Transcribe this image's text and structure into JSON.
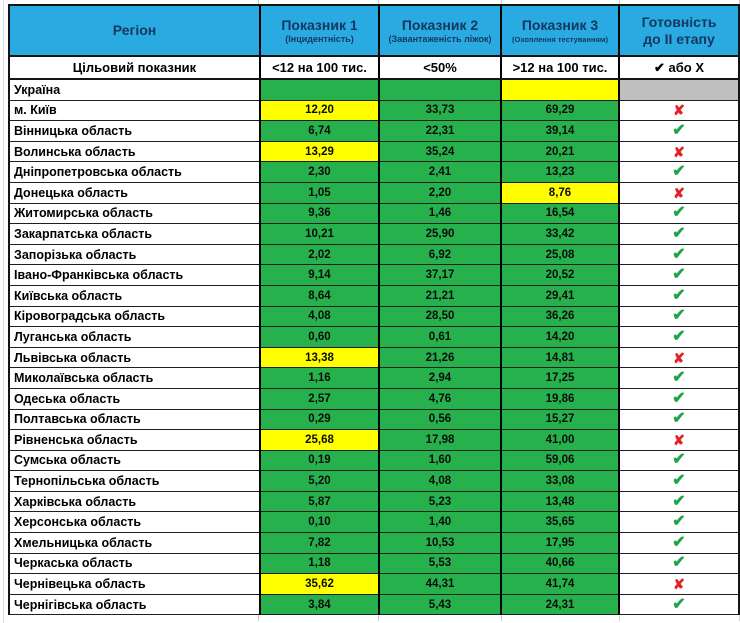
{
  "palette": {
    "header_blue": "#29ABE2",
    "header_text": "#15365F",
    "cell_green": "#26B14C",
    "cell_yellow": "#FFFF00",
    "cell_gray": "#BFBFBF",
    "check_green": "#1CA54A",
    "cross_red": "#E31E25"
  },
  "header": {
    "region": "Регіон",
    "col1_title": "Показник 1",
    "col1_subtitle": "(Інцидентність)",
    "col2_title": "Показник 2",
    "col2_subtitle": "(Завантаженість ліжок)",
    "col3_title": "Показник 3",
    "col3_subtitle": "(Охоплення тестуванням)",
    "ready_line1": "Готовність",
    "ready_line2": "до II етапу"
  },
  "target_row": {
    "label": "Цільовий показник",
    "v1": "<12 на 100 тис.",
    "v2": "<50%",
    "v3": ">12 на 100 тис.",
    "ready": "✔ або Х"
  },
  "marks": {
    "check": "✔",
    "cross": "✘"
  },
  "rows": [
    {
      "region": "Україна",
      "values": [
        "",
        "",
        ""
      ],
      "cell_colors": [
        "green",
        "green",
        "yellow"
      ],
      "ready": "none"
    },
    {
      "region": "м. Київ",
      "values": [
        "12,20",
        "33,73",
        "69,29"
      ],
      "cell_colors": [
        "yellow",
        "green",
        "green"
      ],
      "ready": "cross"
    },
    {
      "region": "Вінницька область",
      "values": [
        "6,74",
        "22,31",
        "39,14"
      ],
      "cell_colors": [
        "green",
        "green",
        "green"
      ],
      "ready": "check"
    },
    {
      "region": "Волинська область",
      "values": [
        "13,29",
        "35,24",
        "20,21"
      ],
      "cell_colors": [
        "yellow",
        "green",
        "green"
      ],
      "ready": "cross"
    },
    {
      "region": "Дніпропетровська область",
      "values": [
        "2,30",
        "2,41",
        "13,23"
      ],
      "cell_colors": [
        "green",
        "green",
        "green"
      ],
      "ready": "check"
    },
    {
      "region": "Донецька область",
      "values": [
        "1,05",
        "2,20",
        "8,76"
      ],
      "cell_colors": [
        "green",
        "green",
        "yellow"
      ],
      "ready": "cross"
    },
    {
      "region": "Житомирська область",
      "values": [
        "9,36",
        "1,46",
        "16,54"
      ],
      "cell_colors": [
        "green",
        "green",
        "green"
      ],
      "ready": "check"
    },
    {
      "region": "Закарпатська область",
      "values": [
        "10,21",
        "25,90",
        "33,42"
      ],
      "cell_colors": [
        "green",
        "green",
        "green"
      ],
      "ready": "check"
    },
    {
      "region": "Запорізька область",
      "values": [
        "2,02",
        "6,92",
        "25,08"
      ],
      "cell_colors": [
        "green",
        "green",
        "green"
      ],
      "ready": "check"
    },
    {
      "region": "Івано-Франківська область",
      "values": [
        "9,14",
        "37,17",
        "20,52"
      ],
      "cell_colors": [
        "green",
        "green",
        "green"
      ],
      "ready": "check"
    },
    {
      "region": "Київська область",
      "values": [
        "8,64",
        "21,21",
        "29,41"
      ],
      "cell_colors": [
        "green",
        "green",
        "green"
      ],
      "ready": "check"
    },
    {
      "region": "Кіровоградська область",
      "values": [
        "4,08",
        "28,50",
        "36,26"
      ],
      "cell_colors": [
        "green",
        "green",
        "green"
      ],
      "ready": "check"
    },
    {
      "region": "Луганська область",
      "values": [
        "0,60",
        "0,61",
        "14,20"
      ],
      "cell_colors": [
        "green",
        "green",
        "green"
      ],
      "ready": "check"
    },
    {
      "region": "Львівська область",
      "values": [
        "13,38",
        "21,26",
        "14,81"
      ],
      "cell_colors": [
        "yellow",
        "green",
        "green"
      ],
      "ready": "cross"
    },
    {
      "region": "Миколаївська область",
      "values": [
        "1,16",
        "2,94",
        "17,25"
      ],
      "cell_colors": [
        "green",
        "green",
        "green"
      ],
      "ready": "check"
    },
    {
      "region": "Одеська область",
      "values": [
        "2,57",
        "4,76",
        "19,86"
      ],
      "cell_colors": [
        "green",
        "green",
        "green"
      ],
      "ready": "check"
    },
    {
      "region": "Полтавська область",
      "values": [
        "0,29",
        "0,56",
        "15,27"
      ],
      "cell_colors": [
        "green",
        "green",
        "green"
      ],
      "ready": "check"
    },
    {
      "region": "Рівненська область",
      "values": [
        "25,68",
        "17,98",
        "41,00"
      ],
      "cell_colors": [
        "yellow",
        "green",
        "green"
      ],
      "ready": "cross"
    },
    {
      "region": "Сумська область",
      "values": [
        "0,19",
        "1,60",
        "59,06"
      ],
      "cell_colors": [
        "green",
        "green",
        "green"
      ],
      "ready": "check"
    },
    {
      "region": "Тернопільська область",
      "values": [
        "5,20",
        "4,08",
        "33,08"
      ],
      "cell_colors": [
        "green",
        "green",
        "green"
      ],
      "ready": "check"
    },
    {
      "region": "Харківська область",
      "values": [
        "5,87",
        "5,23",
        "13,48"
      ],
      "cell_colors": [
        "green",
        "green",
        "green"
      ],
      "ready": "check"
    },
    {
      "region": "Херсонська область",
      "values": [
        "0,10",
        "1,40",
        "35,65"
      ],
      "cell_colors": [
        "green",
        "green",
        "green"
      ],
      "ready": "check"
    },
    {
      "region": "Хмельницька область",
      "values": [
        "7,82",
        "10,53",
        "17,95"
      ],
      "cell_colors": [
        "green",
        "green",
        "green"
      ],
      "ready": "check"
    },
    {
      "region": "Черкаська область",
      "values": [
        "1,18",
        "5,53",
        "40,66"
      ],
      "cell_colors": [
        "green",
        "green",
        "green"
      ],
      "ready": "check"
    },
    {
      "region": "Чернівецька область",
      "values": [
        "35,62",
        "44,31",
        "41,74"
      ],
      "cell_colors": [
        "yellow",
        "green",
        "green"
      ],
      "ready": "cross"
    },
    {
      "region": "Чернігівська область",
      "values": [
        "3,84",
        "5,43",
        "24,31"
      ],
      "cell_colors": [
        "green",
        "green",
        "green"
      ],
      "ready": "check"
    }
  ]
}
